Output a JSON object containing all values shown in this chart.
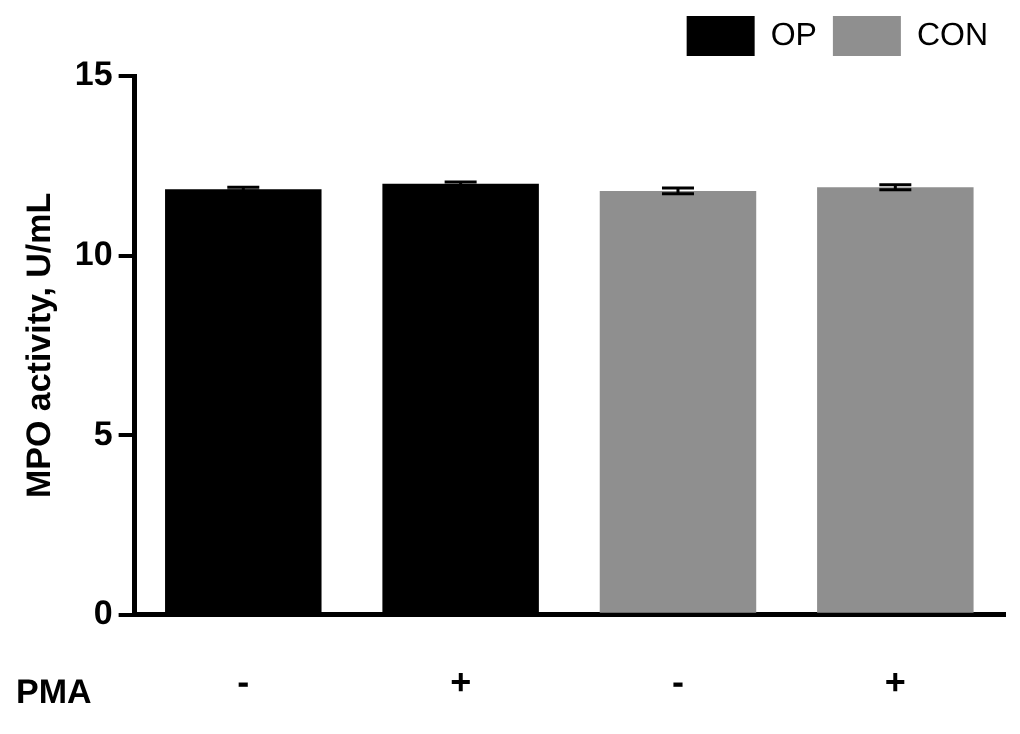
{
  "chart_data": {
    "type": "bar",
    "xlabel": "PMA",
    "ylabel": "MPO activity, U/mL",
    "categories": [
      "-",
      "+",
      "-",
      "+"
    ],
    "series": [
      {
        "name": "OP",
        "color": "#000000",
        "values": [
          11.85,
          12.0,
          null,
          null
        ],
        "errors": [
          0.05,
          0.05,
          null,
          null
        ]
      },
      {
        "name": "CON",
        "color": "#8f8f8f",
        "values": [
          null,
          null,
          11.8,
          11.9
        ],
        "errors": [
          null,
          null,
          0.08,
          0.07
        ]
      }
    ],
    "ylim": [
      0,
      15
    ],
    "yticks": [
      0,
      5,
      10,
      15
    ],
    "grid": false,
    "legend": "top right"
  }
}
